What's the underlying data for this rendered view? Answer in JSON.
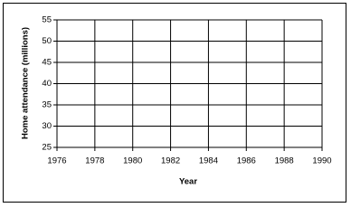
{
  "chart_data": {
    "type": "scatter",
    "xlabel": "Year",
    "ylabel": "Home attendance (millions)",
    "xlim": [
      1976,
      1990
    ],
    "xticks": [
      1976,
      1978,
      1980,
      1982,
      1984,
      1986,
      1988,
      1990
    ],
    "ylim": [
      25,
      55
    ],
    "yticks": [
      25,
      30,
      35,
      40,
      45,
      50,
      55
    ],
    "grid": true
  }
}
